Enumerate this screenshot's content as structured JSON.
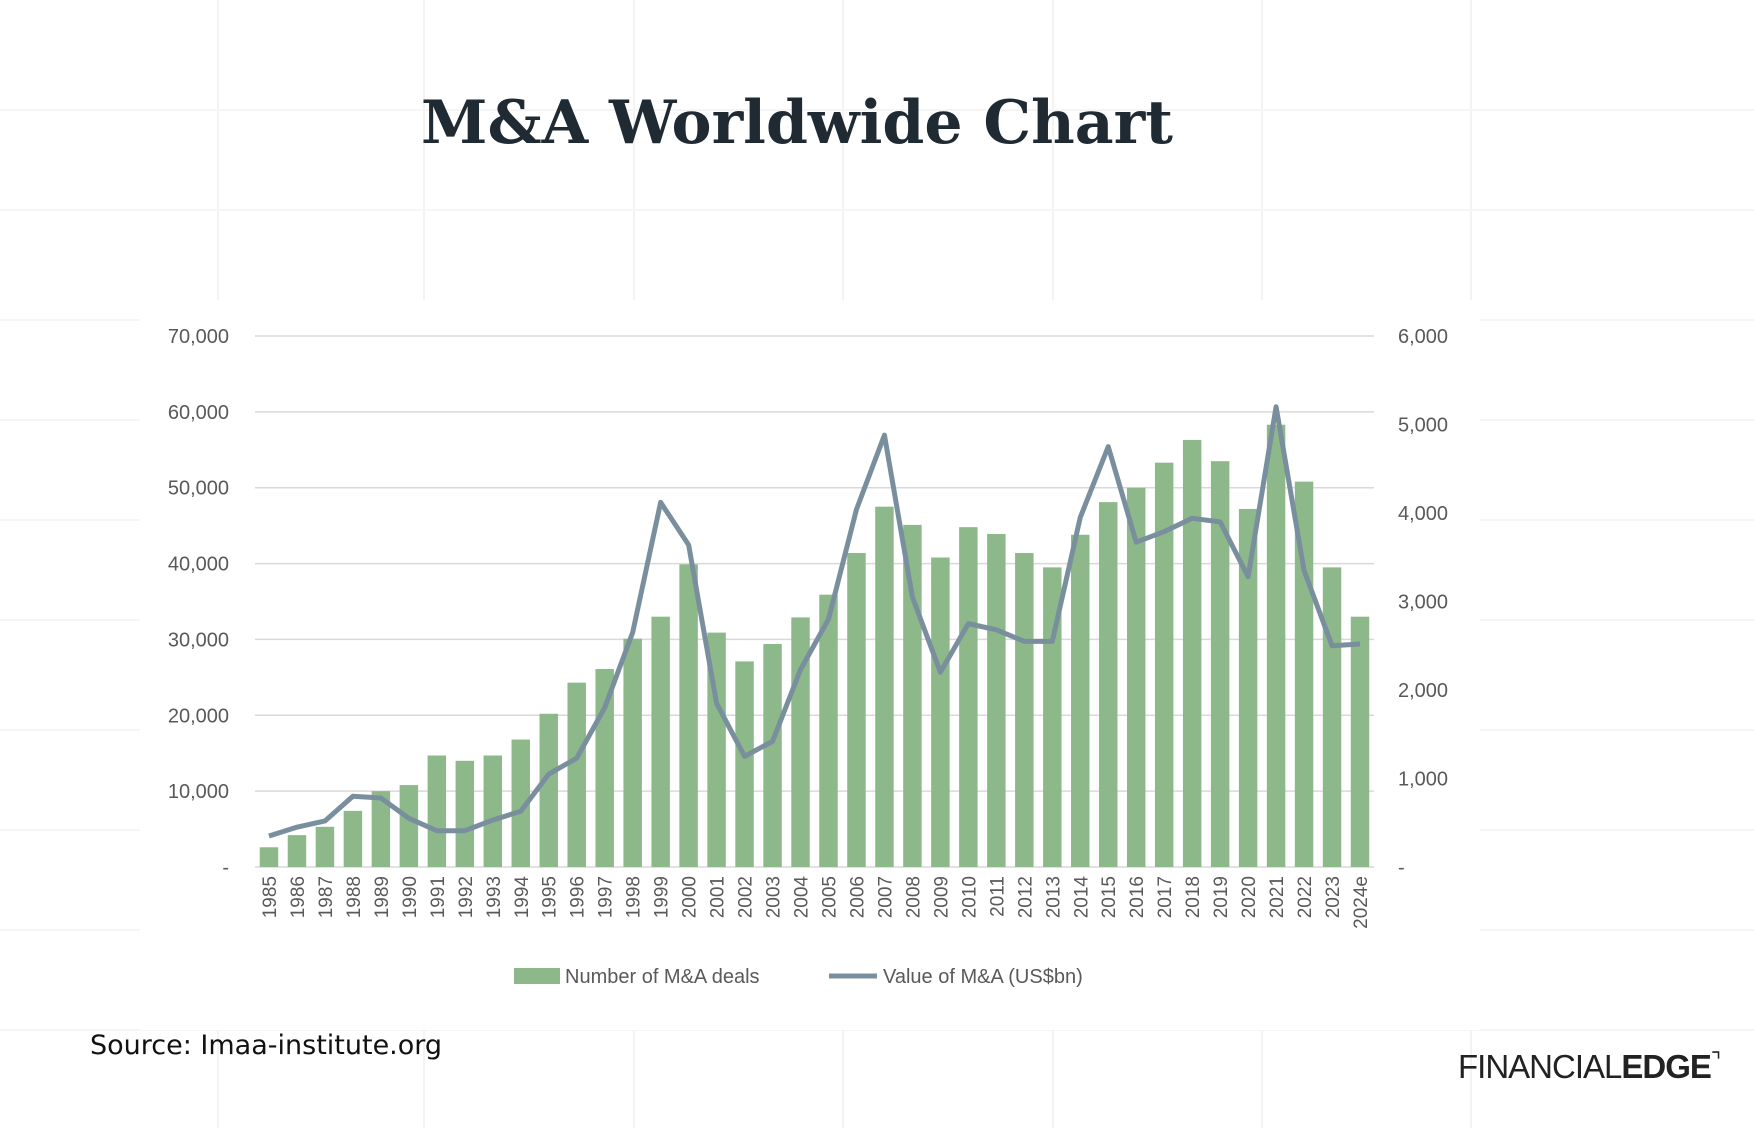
{
  "title": "M&A Worldwide Chart",
  "source": "Source: Imaa-institute.org",
  "logo": {
    "left": "FINANCIAL",
    "right": "EDGE"
  },
  "colors": {
    "bars": "#8db88a",
    "line": "#7a8f9e",
    "grid": "#d9d9d9",
    "text": "#595959",
    "title": "#1f2a33"
  },
  "chart_data": {
    "type": "bar+line",
    "categories": [
      "1985",
      "1986",
      "1987",
      "1988",
      "1989",
      "1990",
      "1991",
      "1992",
      "1993",
      "1994",
      "1995",
      "1996",
      "1997",
      "1998",
      "1999",
      "2000",
      "2001",
      "2002",
      "2003",
      "2004",
      "2005",
      "2006",
      "2007",
      "2008",
      "2009",
      "2010",
      "2011",
      "2012",
      "2013",
      "2014",
      "2015",
      "2016",
      "2017",
      "2018",
      "2019",
      "2020",
      "2021",
      "2022",
      "2023",
      "2024e"
    ],
    "series": [
      {
        "name": "Number of M&A deals",
        "type": "bar",
        "axis": "left",
        "values": [
          2600,
          4200,
          5300,
          7400,
          10000,
          10800,
          14700,
          14000,
          14700,
          16800,
          20200,
          24300,
          26100,
          30100,
          33000,
          39900,
          30900,
          27100,
          29400,
          32900,
          35900,
          41400,
          47500,
          45100,
          40800,
          44800,
          43900,
          41400,
          39500,
          43800,
          48100,
          50000,
          53300,
          56300,
          53500,
          47200,
          58300,
          50800,
          39500,
          33000
        ]
      },
      {
        "name": "Value of M&A (US$bn)",
        "type": "line",
        "axis": "right",
        "values": [
          350,
          450,
          520,
          800,
          780,
          550,
          410,
          410,
          530,
          630,
          1050,
          1230,
          1800,
          2650,
          4120,
          3640,
          1850,
          1250,
          1420,
          2230,
          2800,
          4040,
          4880,
          3050,
          2200,
          2750,
          2680,
          2550,
          2550,
          3950,
          4750,
          3670,
          3790,
          3940,
          3900,
          3280,
          5200,
          3350,
          2500,
          2520
        ]
      }
    ],
    "left_axis": {
      "ylim": [
        0,
        70000
      ],
      "ticks": [
        "-",
        "10,000",
        "20,000",
        "30,000",
        "40,000",
        "50,000",
        "60,000",
        "70,000"
      ]
    },
    "right_axis": {
      "ylim": [
        0,
        6000
      ],
      "ticks": [
        "-",
        "1,000",
        "2,000",
        "3,000",
        "4,000",
        "5,000",
        "6,000"
      ]
    },
    "grid": true,
    "legend": "bottom"
  }
}
